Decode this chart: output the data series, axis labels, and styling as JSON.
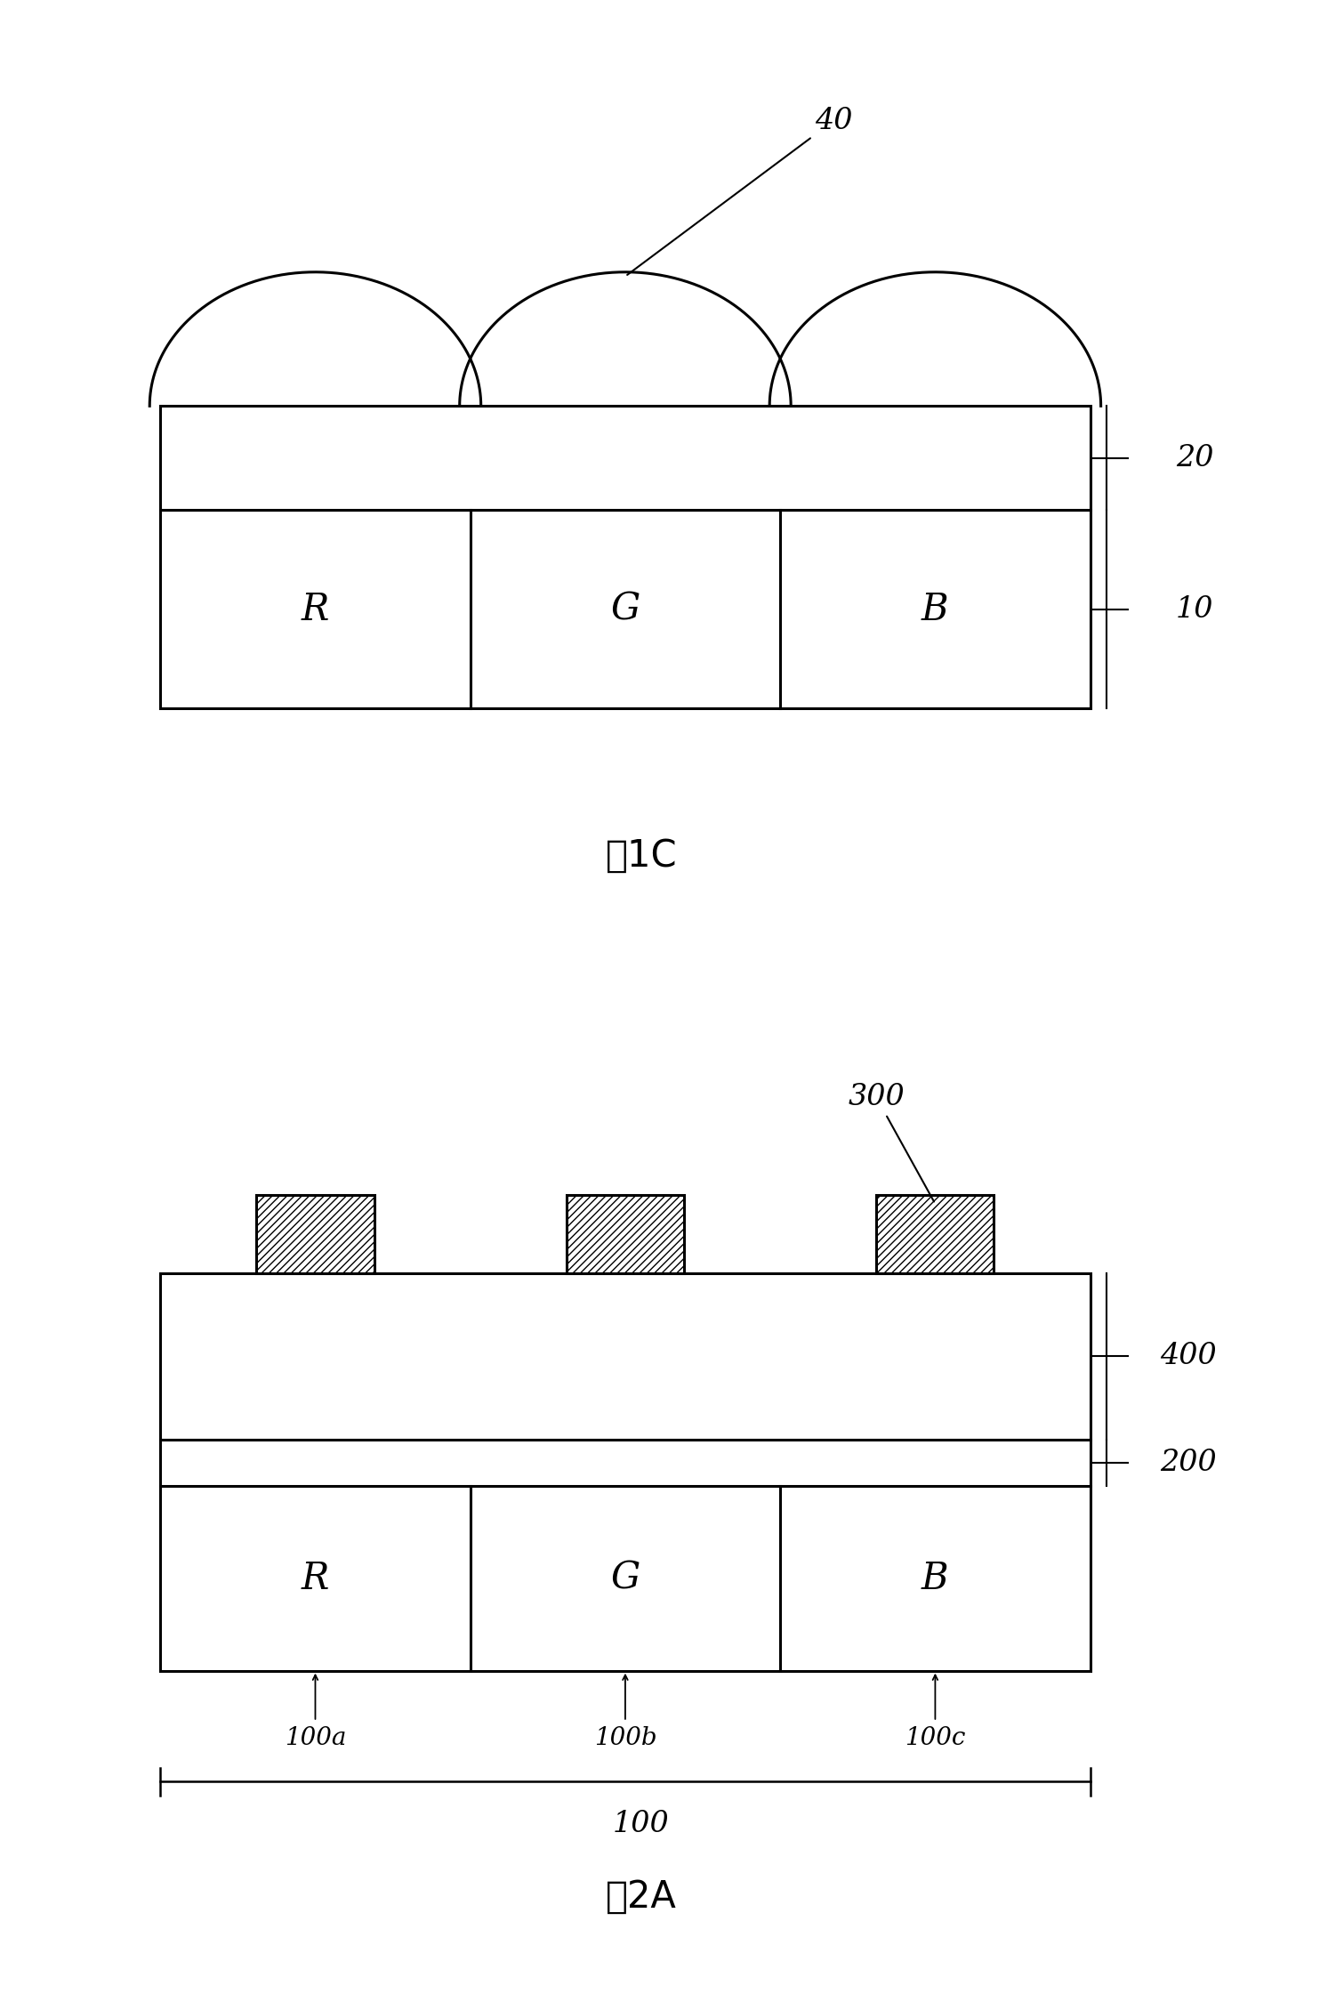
{
  "bg_color": "#ffffff",
  "fig1c": {
    "title": "图1C",
    "label_40": "40",
    "label_20": "20",
    "label_10": "10",
    "rgb_labels": [
      "R",
      "G",
      "B"
    ]
  },
  "fig2a": {
    "title": "图2A",
    "label_300": "300",
    "label_400": "400",
    "label_200": "200",
    "label_100a": "100a",
    "label_100b": "100b",
    "label_100c": "100c",
    "label_100": "100",
    "rgb_labels": [
      "R",
      "G",
      "B"
    ]
  }
}
